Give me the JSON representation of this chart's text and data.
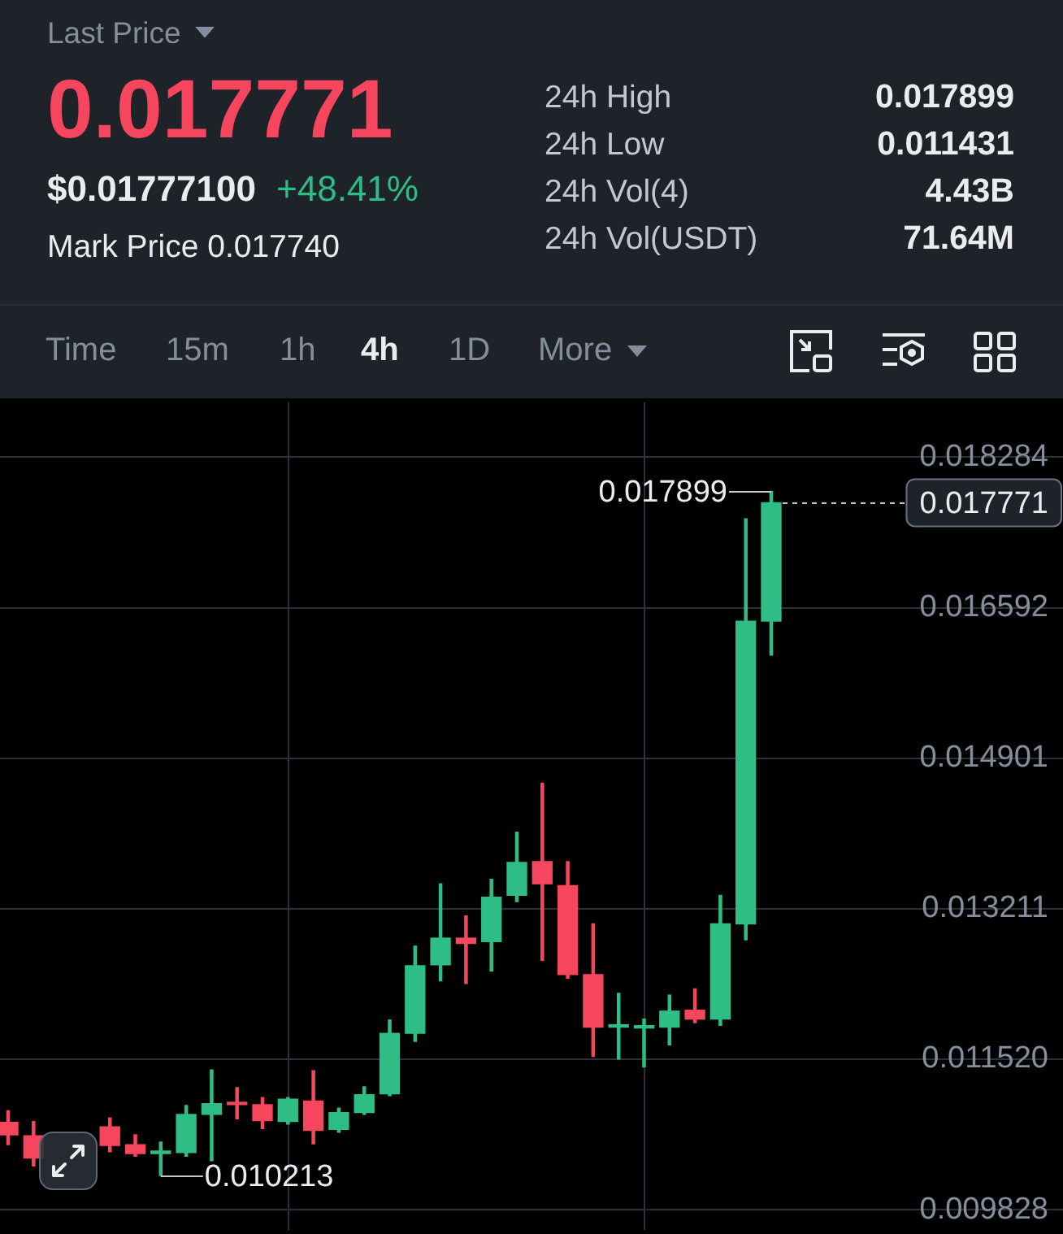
{
  "chart_data": [
    {
      "type": "other",
      "title": "Last Price",
      "annotations": [
        "0.017771",
        "$0.01777100",
        "+48.41%",
        "Mark Price 0.017740",
        "24h High",
        "0.017899",
        "24h Low",
        "0.011431",
        "24h Vol(4)",
        "4.43B",
        "24h Vol(USDT)",
        "71.64M",
        "Time",
        "15m",
        "1h",
        "4h",
        "1D",
        "More"
      ]
    },
    {
      "type": "candlestick",
      "categories": [
        null,
        null,
        null,
        null,
        null,
        null,
        null,
        null,
        null,
        null,
        null,
        null,
        null,
        null,
        null,
        null,
        null,
        null,
        null,
        null,
        null,
        null,
        null,
        null,
        null,
        null,
        null,
        null,
        null,
        null,
        null
      ],
      "ohlc": [
        [
          0.01081,
          0.01094,
          0.01056,
          0.01067
        ],
        [
          0.01066,
          0.01082,
          0.01032,
          0.01041
        ],
        null,
        null,
        [
          0.01076,
          0.01086,
          0.01048,
          0.01055
        ],
        [
          0.01056,
          0.01067,
          0.01043,
          0.01046
        ],
        [
          0.01046,
          0.01059,
          0.010213,
          0.01047
        ],
        [
          0.01047,
          0.011,
          0.01043,
          0.0109
        ],
        [
          0.0109,
          0.0114,
          0.01038,
          0.01102
        ],
        [
          0.01102,
          0.0112,
          0.01085,
          0.01101
        ],
        [
          0.01101,
          0.01109,
          0.01074,
          0.01083
        ],
        [
          0.01082,
          0.01109,
          0.01079,
          0.01107
        ],
        [
          0.01105,
          0.01139,
          0.01057,
          0.01072
        ],
        [
          0.01073,
          0.01097,
          0.0107,
          0.01092
        ],
        [
          0.01092,
          0.01121,
          0.0109,
          0.01112
        ],
        [
          0.01113,
          0.01196,
          0.01111,
          0.01181
        ],
        [
          0.01181,
          0.01279,
          0.01172,
          0.01257
        ],
        [
          0.01258,
          0.01349,
          0.0124,
          0.01288
        ],
        [
          0.01288,
          0.01313,
          0.01237,
          0.01282
        ],
        [
          0.01284,
          0.01354,
          0.01251,
          0.01334
        ],
        [
          0.01336,
          0.01407,
          0.01329,
          0.01373
        ],
        [
          0.01374,
          0.01462,
          0.01263,
          0.01349
        ],
        [
          0.01347,
          0.01374,
          0.01243,
          0.01247
        ],
        [
          0.01247,
          0.01304,
          0.01155,
          0.01188
        ],
        [
          0.01188,
          0.01226,
          0.01152,
          0.0119
        ],
        [
          0.01187,
          0.01197,
          0.011431,
          0.01188
        ],
        [
          0.01188,
          0.01224,
          0.01168,
          0.01206
        ],
        [
          0.01207,
          0.01231,
          0.01193,
          0.01197
        ],
        [
          0.01197,
          0.01336,
          0.0119,
          0.01304
        ],
        [
          0.01304,
          0.01759,
          0.01286,
          0.01644
        ],
        [
          0.01644,
          0.017899,
          0.01606,
          0.017771
        ]
      ],
      "colors": [
        "#f6465d",
        "#f6465d",
        null,
        null,
        "#f6465d",
        "#f6465d",
        "#2ebd85",
        "#2ebd85",
        "#2ebd85",
        "#f6465d",
        "#f6465d",
        "#2ebd85",
        "#f6465d",
        "#2ebd85",
        "#2ebd85",
        "#2ebd85",
        "#2ebd85",
        "#2ebd85",
        "#f6465d",
        "#2ebd85",
        "#2ebd85",
        "#f6465d",
        "#f6465d",
        "#f6465d",
        "#2ebd85",
        "#2ebd85",
        "#2ebd85",
        "#f6465d",
        "#2ebd85",
        "#2ebd85",
        "#2ebd85"
      ],
      "ylim": [
        0.0096,
        0.0189
      ],
      "yticks": [
        0.018284,
        0.016592,
        0.014901,
        0.013211,
        {
          "value": 0.01152,
          "label": "0.011520"
        },
        0.009828
      ],
      "grid": true,
      "ref_lines": [
        {
          "axis": "y",
          "value": 0.017771,
          "label": "0.017771",
          "line_style": "dashed",
          "color": "#c3c7ce"
        }
      ],
      "annotations": [
        "0.017899",
        "0.010213"
      ]
    }
  ]
}
